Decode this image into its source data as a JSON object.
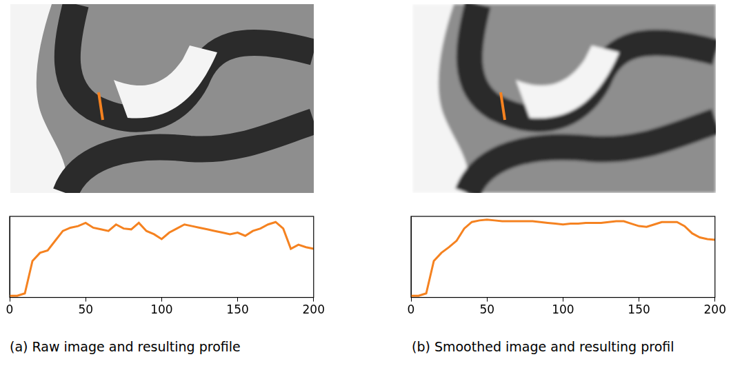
{
  "chart_data": [
    {
      "type": "line",
      "title": "(a) Raw image and resulting profile",
      "color": "#f58220",
      "x": [
        0,
        5,
        10,
        15,
        20,
        25,
        30,
        35,
        40,
        45,
        50,
        55,
        60,
        65,
        70,
        75,
        80,
        85,
        90,
        95,
        100,
        105,
        110,
        115,
        120,
        125,
        130,
        135,
        140,
        145,
        150,
        155,
        160,
        165,
        170,
        175,
        180,
        185,
        190,
        195,
        200
      ],
      "values": [
        0.02,
        0.02,
        0.05,
        0.45,
        0.55,
        0.58,
        0.7,
        0.82,
        0.86,
        0.88,
        0.92,
        0.86,
        0.84,
        0.82,
        0.9,
        0.85,
        0.84,
        0.92,
        0.82,
        0.78,
        0.72,
        0.8,
        0.85,
        0.9,
        0.88,
        0.86,
        0.84,
        0.82,
        0.8,
        0.78,
        0.8,
        0.76,
        0.82,
        0.85,
        0.9,
        0.93,
        0.85,
        0.6,
        0.65,
        0.62,
        0.6
      ],
      "xlim": [
        0,
        200
      ],
      "xticks": [
        0,
        50,
        100,
        150,
        200
      ],
      "ylim": [
        0,
        1
      ],
      "grid": false,
      "tick_labels": "x"
    },
    {
      "type": "line",
      "title": "(b) Smoothed image and resulting profil",
      "color": "#f58220",
      "x": [
        0,
        5,
        10,
        15,
        20,
        25,
        30,
        35,
        40,
        45,
        50,
        55,
        60,
        65,
        70,
        75,
        80,
        85,
        90,
        95,
        100,
        105,
        110,
        115,
        120,
        125,
        130,
        135,
        140,
        145,
        150,
        155,
        160,
        165,
        170,
        175,
        180,
        185,
        190,
        195,
        200
      ],
      "values": [
        0.02,
        0.02,
        0.05,
        0.45,
        0.55,
        0.62,
        0.7,
        0.85,
        0.93,
        0.95,
        0.96,
        0.95,
        0.94,
        0.94,
        0.94,
        0.94,
        0.94,
        0.93,
        0.92,
        0.91,
        0.9,
        0.91,
        0.91,
        0.92,
        0.92,
        0.92,
        0.93,
        0.94,
        0.94,
        0.91,
        0.88,
        0.87,
        0.9,
        0.93,
        0.93,
        0.93,
        0.88,
        0.79,
        0.74,
        0.72,
        0.71
      ],
      "xlim": [
        0,
        200
      ],
      "xticks": [
        0,
        50,
        100,
        150,
        200
      ],
      "ylim": [
        0,
        1
      ],
      "grid": false,
      "tick_labels": "x"
    }
  ]
}
